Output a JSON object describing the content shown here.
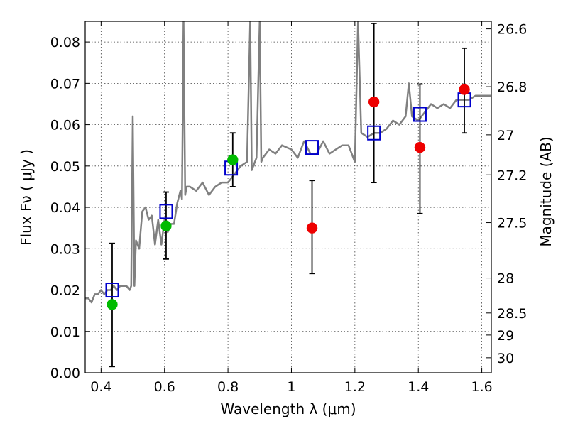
{
  "chart_data": {
    "type": "scatter",
    "title": "",
    "xlabel": "Wavelength  λ (μm)",
    "ylabel": "Flux  Fν  ( μJy )",
    "y2label": "Magnitude (AB)",
    "xlim": [
      0.35,
      1.63
    ],
    "ylim": [
      0.0,
      0.085
    ],
    "grid": true,
    "x_ticks": [
      0.4,
      0.6,
      0.8,
      1.0,
      1.2,
      1.4,
      1.6
    ],
    "x_tick_labels": [
      "0.4",
      "0.6",
      "0.8",
      "1",
      "1.2",
      "1.4",
      "1.6"
    ],
    "y_ticks": [
      0.0,
      0.01,
      0.02,
      0.03,
      0.04,
      0.05,
      0.06,
      0.07,
      0.08
    ],
    "y_tick_labels": [
      "0.00",
      "0.01",
      "0.02",
      "0.03",
      "0.04",
      "0.05",
      "0.06",
      "0.07",
      "0.08"
    ],
    "y2_ticks": [
      26.6,
      26.8,
      27.0,
      27.2,
      27.5,
      28.0,
      28.5,
      29.0,
      30.0
    ],
    "y2_tick_labels": [
      "26.6",
      "26.8",
      "27",
      "27.2",
      "27.5",
      "28",
      "28.5",
      "29",
      "30"
    ],
    "series": [
      {
        "style": "line",
        "color": "#808080",
        "x": [
          0.35,
          0.36,
          0.37,
          0.38,
          0.39,
          0.4,
          0.41,
          0.42,
          0.43,
          0.44,
          0.45,
          0.46,
          0.47,
          0.48,
          0.49,
          0.495,
          0.5,
          0.505,
          0.51,
          0.52,
          0.53,
          0.54,
          0.55,
          0.56,
          0.57,
          0.58,
          0.59,
          0.6,
          0.61,
          0.62,
          0.63,
          0.64,
          0.65,
          0.655,
          0.66,
          0.665,
          0.67,
          0.68,
          0.7,
          0.72,
          0.74,
          0.76,
          0.78,
          0.8,
          0.82,
          0.84,
          0.86,
          0.87,
          0.875,
          0.88,
          0.89,
          0.9,
          0.905,
          0.91,
          0.93,
          0.95,
          0.97,
          1.0,
          1.02,
          1.04,
          1.06,
          1.08,
          1.1,
          1.12,
          1.14,
          1.16,
          1.18,
          1.2,
          1.21,
          1.22,
          1.24,
          1.26,
          1.28,
          1.3,
          1.32,
          1.34,
          1.36,
          1.37,
          1.38,
          1.4,
          1.42,
          1.44,
          1.46,
          1.48,
          1.5,
          1.52,
          1.54,
          1.56,
          1.58,
          1.6,
          1.63
        ],
        "y": [
          0.018,
          0.018,
          0.017,
          0.019,
          0.019,
          0.02,
          0.019,
          0.02,
          0.02,
          0.021,
          0.02,
          0.021,
          0.021,
          0.021,
          0.02,
          0.021,
          0.062,
          0.021,
          0.032,
          0.03,
          0.039,
          0.04,
          0.037,
          0.038,
          0.031,
          0.037,
          0.031,
          0.037,
          0.034,
          0.036,
          0.036,
          0.041,
          0.044,
          0.042,
          0.085,
          0.043,
          0.045,
          0.045,
          0.044,
          0.046,
          0.043,
          0.045,
          0.046,
          0.046,
          0.048,
          0.05,
          0.051,
          0.085,
          0.049,
          0.05,
          0.052,
          0.085,
          0.051,
          0.052,
          0.054,
          0.053,
          0.055,
          0.054,
          0.052,
          0.056,
          0.053,
          0.053,
          0.056,
          0.053,
          0.054,
          0.055,
          0.055,
          0.051,
          0.085,
          0.058,
          0.057,
          0.058,
          0.058,
          0.059,
          0.061,
          0.06,
          0.062,
          0.07,
          0.062,
          0.061,
          0.063,
          0.065,
          0.064,
          0.065,
          0.064,
          0.066,
          0.066,
          0.066,
          0.067,
          0.067,
          0.067
        ]
      },
      {
        "style": "marker",
        "marker": "open-square",
        "color": "#0000cc",
        "x": [
          0.435,
          0.605,
          0.81,
          1.065,
          1.26,
          1.405,
          1.545
        ],
        "y": [
          0.02,
          0.039,
          0.0495,
          0.0545,
          0.058,
          0.0625,
          0.066
        ]
      },
      {
        "style": "marker",
        "marker": "filled-circle",
        "color": "#00bb00",
        "x": [
          0.435,
          0.605,
          0.815
        ],
        "y": [
          0.0165,
          0.0355,
          0.0515
        ]
      },
      {
        "style": "marker",
        "marker": "filled-circle",
        "color": "#ee0000",
        "x": [
          1.065,
          1.26,
          1.405,
          1.545
        ],
        "y": [
          0.035,
          0.0655,
          0.0545,
          0.0685
        ]
      },
      {
        "style": "errorbar",
        "color": "#000000",
        "x": [
          0.435,
          0.605,
          0.815,
          1.065,
          1.26,
          1.405,
          1.545
        ],
        "low": [
          0.0015,
          0.0275,
          0.045,
          0.024,
          0.046,
          0.0385,
          0.058
        ],
        "high": [
          0.0313,
          0.0437,
          0.058,
          0.0465,
          0.0845,
          0.0698,
          0.0785
        ]
      }
    ]
  }
}
